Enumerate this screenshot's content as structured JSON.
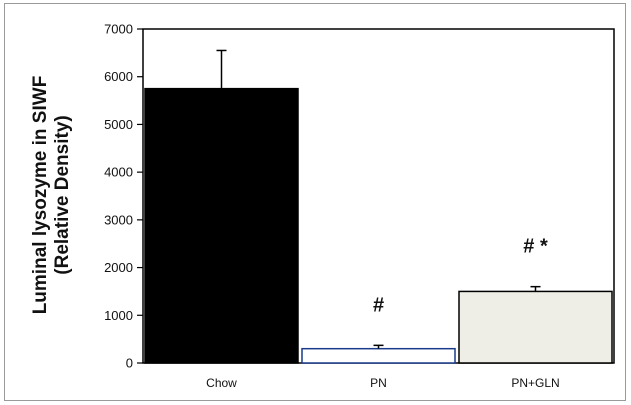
{
  "chart_data": {
    "type": "bar",
    "categories": [
      "Chow",
      "PN",
      "PN+GLN"
    ],
    "values": [
      5750,
      300,
      1500
    ],
    "errors": [
      800,
      70,
      100
    ],
    "bar_colors": [
      "#000000",
      "#ffffff",
      "#eeeee6"
    ],
    "bar_stroke": [
      "#000000",
      "#1a3a8a",
      "#000000"
    ],
    "annotations": [
      "",
      "#",
      "# *"
    ],
    "title": "",
    "xlabel": "",
    "ylabel_lines": [
      "Luminal lysozyme in SIWF",
      "(Relative Density)"
    ],
    "ylim": [
      0,
      7000
    ],
    "yticks": [
      0,
      1000,
      2000,
      3000,
      4000,
      5000,
      6000,
      7000
    ],
    "grid": false
  }
}
